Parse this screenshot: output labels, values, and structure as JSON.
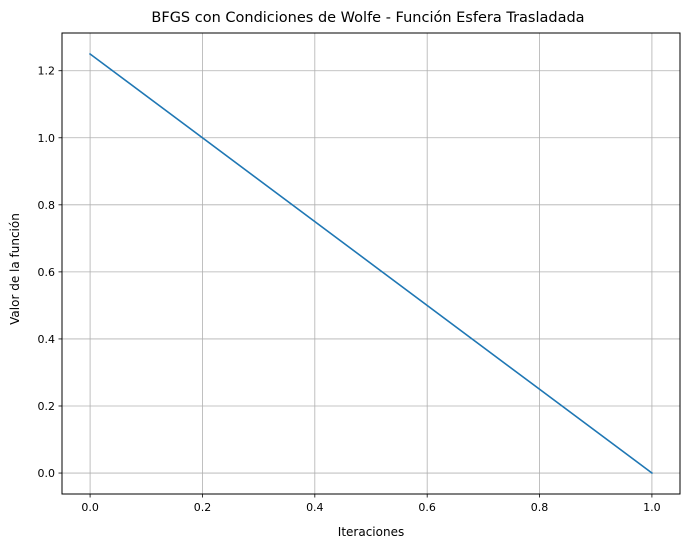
{
  "chart_data": {
    "type": "line",
    "title": "BFGS con Condiciones de Wolfe - Función Esfera Trasladada",
    "xlabel": "Iteraciones",
    "ylabel": "Valor de la función",
    "x": [
      0,
      1
    ],
    "series": [
      {
        "values": [
          1.25,
          0.0
        ],
        "color": "#1f77b4"
      }
    ],
    "xlim": [
      -0.05,
      1.05
    ],
    "ylim": [
      -0.0625,
      1.3125
    ],
    "xticks": [
      0.0,
      0.2,
      0.4,
      0.6,
      0.8,
      1.0
    ],
    "xtick_labels": [
      "0.0",
      "0.2",
      "0.4",
      "0.6",
      "0.8",
      "1.0"
    ],
    "yticks": [
      0.0,
      0.2,
      0.4,
      0.6,
      0.8,
      1.0,
      1.2
    ],
    "ytick_labels": [
      "0.0",
      "0.2",
      "0.4",
      "0.6",
      "0.8",
      "1.0",
      "1.2"
    ],
    "grid": true,
    "grid_color": "#b0b0b0",
    "legend": false
  }
}
